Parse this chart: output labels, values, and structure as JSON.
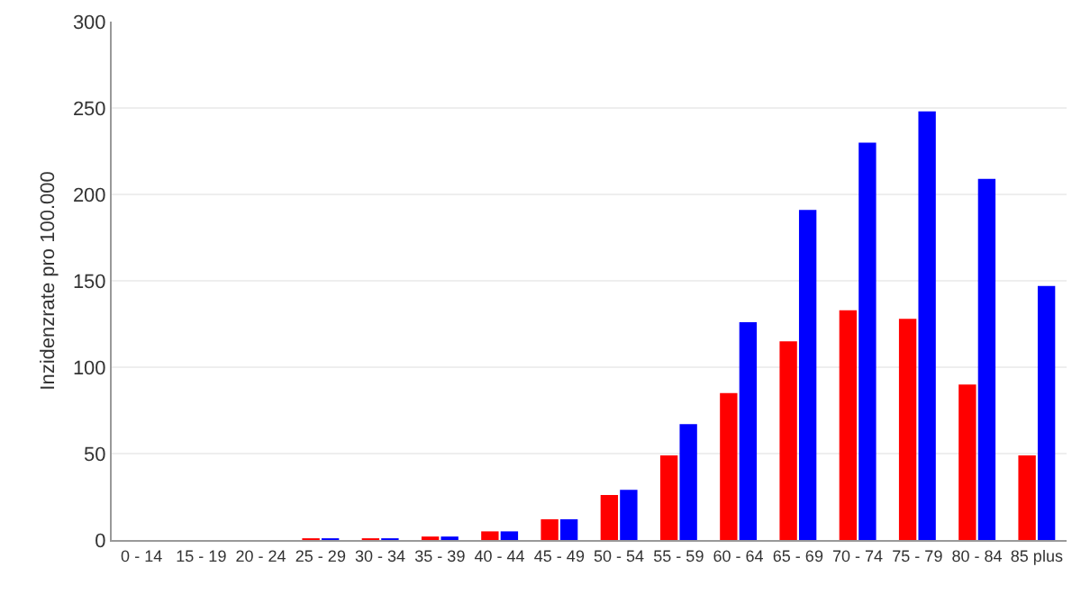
{
  "chart_data": {
    "type": "bar",
    "ylabel": "Inzidenzrate pro 100.000",
    "categories": [
      "0 - 14",
      "15 - 19",
      "20 - 24",
      "25 - 29",
      "30 - 34",
      "35 - 39",
      "40 - 44",
      "45 - 49",
      "50 - 54",
      "55 - 59",
      "60 - 64",
      "65 - 69",
      "70 - 74",
      "75 - 79",
      "80 - 84",
      "85 plus"
    ],
    "series": [
      {
        "color": "#ff0000",
        "values": [
          0,
          0,
          0,
          1,
          1,
          2,
          5,
          12,
          26,
          49,
          85,
          115,
          133,
          128,
          90,
          49
        ]
      },
      {
        "color": "#0000ff",
        "values": [
          0,
          0,
          0,
          1,
          1,
          2,
          5,
          12,
          29,
          67,
          126,
          191,
          230,
          248,
          209,
          147
        ]
      }
    ],
    "ylim": [
      0,
      300
    ],
    "yticks": [
      0,
      50,
      100,
      150,
      200,
      250,
      300
    ],
    "grid": "y",
    "legend": false
  }
}
